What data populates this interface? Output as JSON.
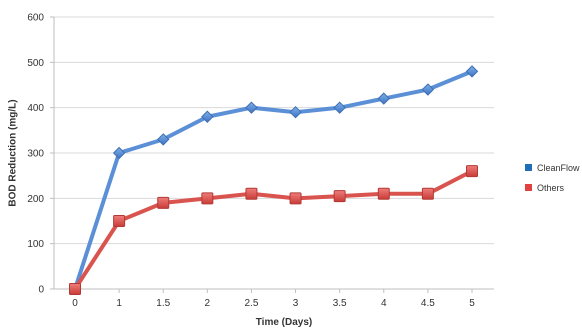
{
  "chart_data": {
    "type": "line",
    "title": "",
    "xlabel": "Time (Days)",
    "ylabel": "BOD Reduction (mg/L)",
    "categories": [
      "0",
      "1",
      "1.5",
      "2",
      "2.5",
      "3",
      "3.5",
      "4",
      "4.5",
      "5"
    ],
    "ylim": [
      0,
      600
    ],
    "yticks": [
      0,
      100,
      200,
      300,
      400,
      500,
      600
    ],
    "grid": true,
    "legend_position": "right",
    "series": [
      {
        "name": "CleanFlow",
        "color": "#5b8fd6",
        "marker": "diamond",
        "values": [
          0,
          300,
          330,
          380,
          400,
          390,
          400,
          420,
          440,
          480
        ]
      },
      {
        "name": "Others",
        "color": "#d9534f",
        "marker": "square",
        "values": [
          0,
          150,
          190,
          200,
          210,
          200,
          205,
          210,
          210,
          260
        ]
      }
    ]
  }
}
